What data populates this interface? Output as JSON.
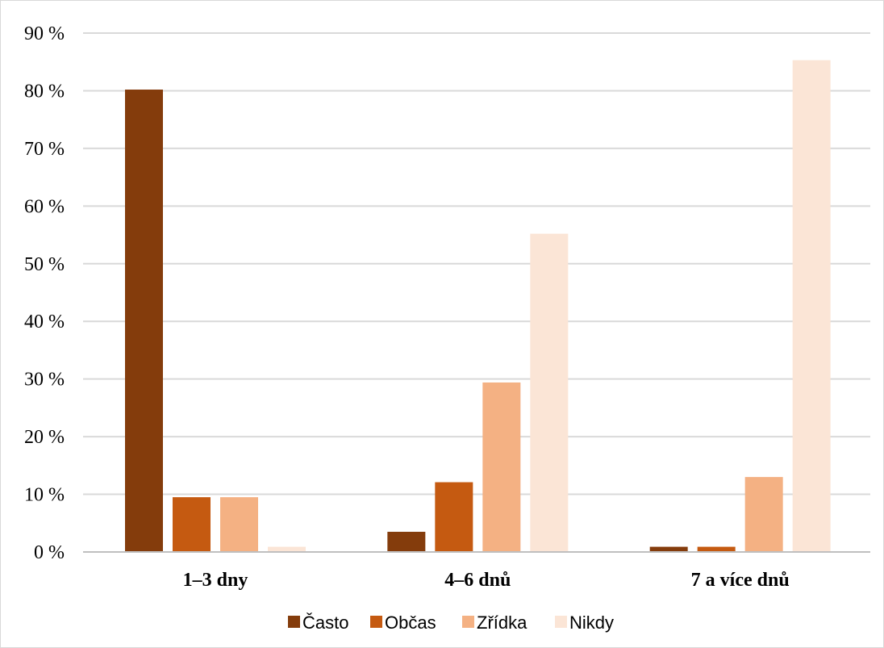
{
  "chart_data": {
    "type": "bar",
    "title": "",
    "xlabel": "",
    "ylabel": "",
    "categories": [
      "1–3 dny",
      "4–6 dnů",
      "7 a více dnů"
    ],
    "series": [
      {
        "name": "Často",
        "color": "#843c0c",
        "values": [
          80.2,
          3.5,
          0.9
        ]
      },
      {
        "name": "Občas",
        "color": "#c55a11",
        "values": [
          9.5,
          12.1,
          0.9
        ]
      },
      {
        "name": "Zřídka",
        "color": "#f4b183",
        "values": [
          9.5,
          29.4,
          13.0
        ]
      },
      {
        "name": "Nikdy",
        "color": "#fbe5d6",
        "values": [
          0.9,
          55.2,
          85.3
        ]
      }
    ],
    "ylim": [
      0,
      90
    ],
    "ytick_values": [
      0,
      10,
      20,
      30,
      40,
      50,
      60,
      70,
      80,
      90
    ],
    "ytick_labels": [
      "0 %",
      "10 %",
      "20 %",
      "30 %",
      "40 %",
      "50 %",
      "60 %",
      "70 %",
      "80 %",
      "90 %"
    ],
    "grid": true,
    "legend_position": "bottom"
  }
}
